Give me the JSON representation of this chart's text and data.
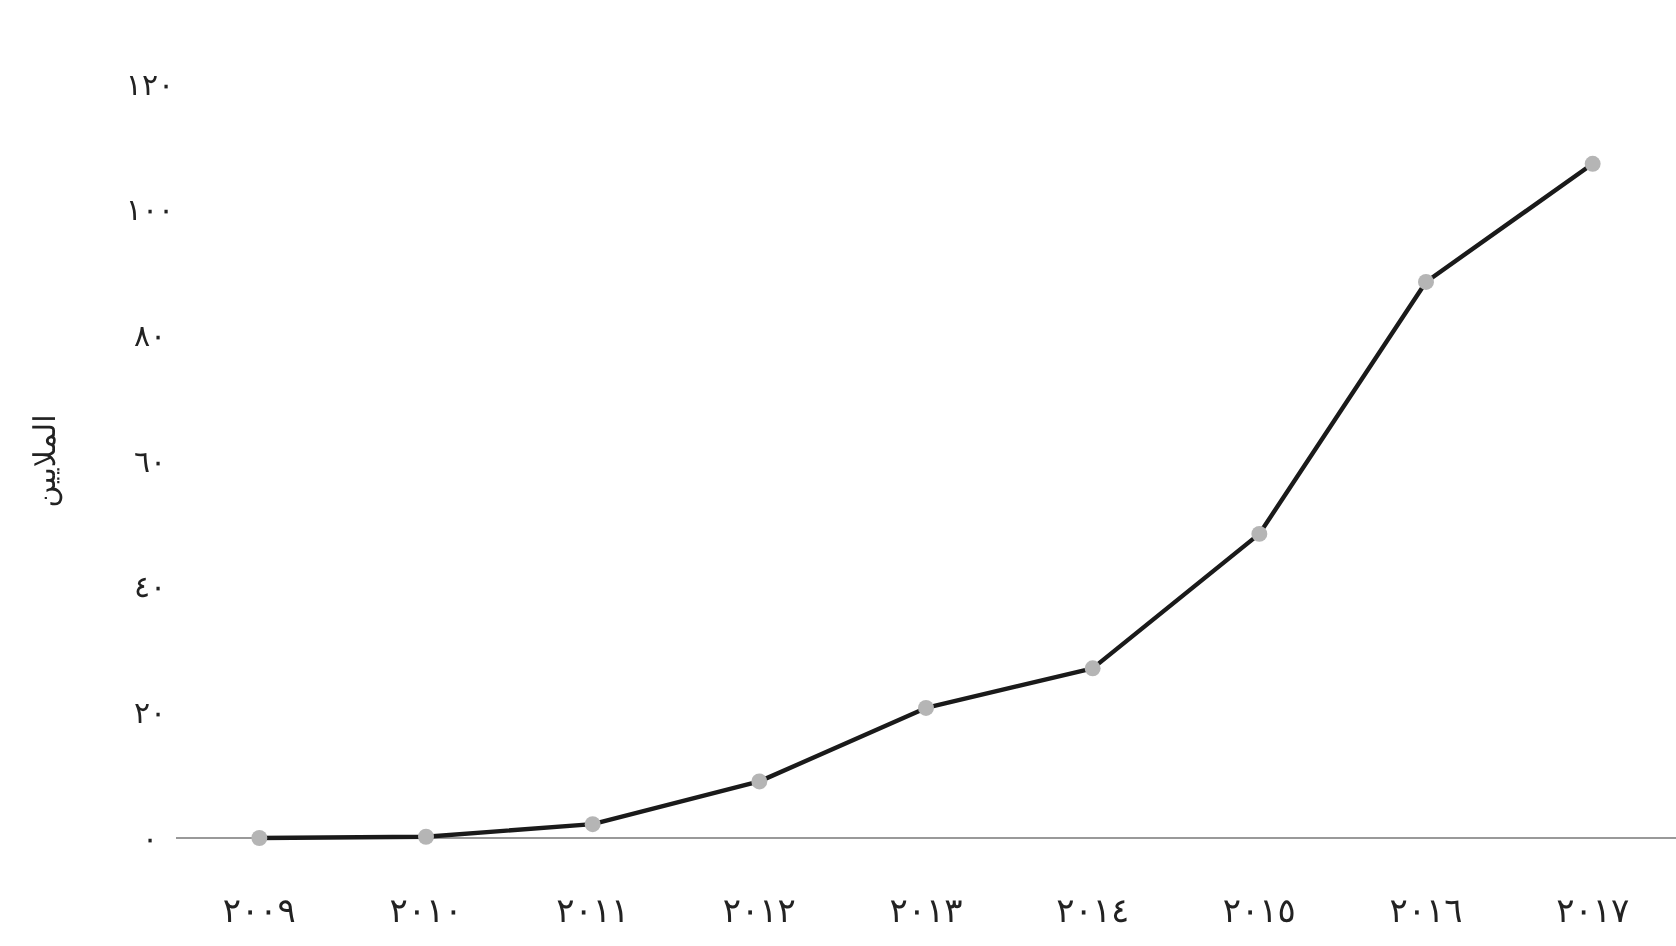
{
  "chart_data": {
    "type": "line",
    "ylabel": "الملايين",
    "categories": [
      "٢٠٠٩",
      "٢٠١٠",
      "٢٠١١",
      "٢٠١٢",
      "٢٠١٣",
      "٢٠١٤",
      "٢٠١٥",
      "٢٠١٦",
      "٢٠١٧"
    ],
    "series": [
      {
        "color": "#1a1a1a",
        "values": [
          0,
          0.2,
          2.2,
          9,
          20.7,
          27,
          48.4,
          88.5,
          107.3
        ]
      }
    ],
    "ylim": [
      0,
      120
    ],
    "yticks": [
      {
        "value": 0,
        "label": "٠"
      },
      {
        "value": 20,
        "label": "٢٠"
      },
      {
        "value": 40,
        "label": "٤٠"
      },
      {
        "value": 60,
        "label": "٦٠"
      },
      {
        "value": 80,
        "label": "٨٠"
      },
      {
        "value": 100,
        "label": "١٠٠"
      },
      {
        "value": 120,
        "label": "١٢٠"
      }
    ],
    "marker": "circle",
    "grid": false
  }
}
